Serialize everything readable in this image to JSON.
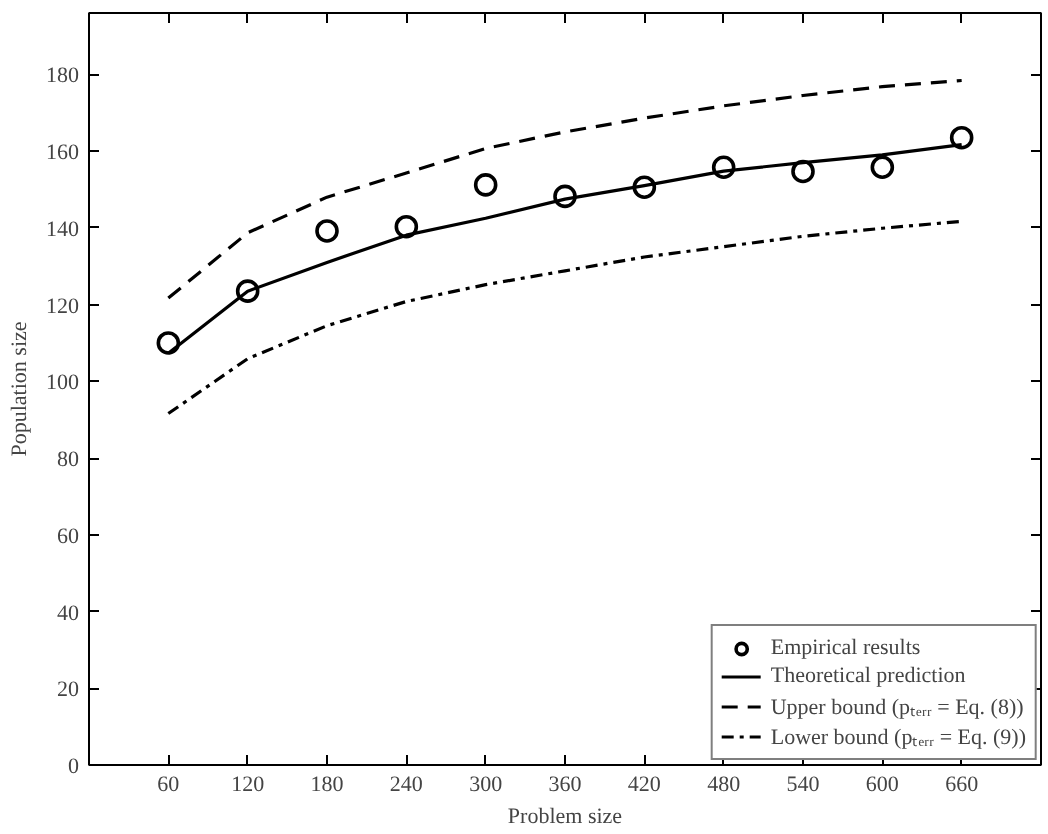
{
  "chart_data": {
    "type": "line",
    "xlabel": "Problem size",
    "ylabel": "Population size",
    "x": [
      60,
      120,
      180,
      240,
      300,
      360,
      420,
      480,
      540,
      600,
      660
    ],
    "xlim": [
      0,
      720
    ],
    "xticks": [
      60,
      120,
      180,
      240,
      300,
      360,
      420,
      480,
      540,
      600,
      660
    ],
    "ylim": [
      0,
      196
    ],
    "yticks": [
      0,
      20,
      40,
      60,
      80,
      100,
      120,
      140,
      160,
      180
    ],
    "grid": false,
    "legend": "bottom right",
    "series": [
      {
        "name": "Empirical results",
        "type": "scatter",
        "marker": "circle",
        "color": "#000000",
        "values": [
          110.0,
          123.5,
          139.2,
          140.3,
          151.2,
          148.2,
          150.6,
          155.8,
          154.7,
          155.8,
          163.5
        ]
      },
      {
        "name": "Theoretical prediction",
        "line_style": "solid",
        "color": "#000000",
        "values": [
          107.3,
          123.5,
          131.0,
          138.1,
          142.5,
          147.5,
          151.0,
          154.8,
          157.0,
          159.0,
          161.7
        ]
      },
      {
        "name": "Upper bound (pₜₑᵣᵣ = Eq. (8))",
        "line_style": "dashed",
        "color": "#000000",
        "values": [
          121.7,
          138.7,
          148.0,
          154.3,
          160.7,
          165.0,
          168.6,
          171.8,
          174.5,
          176.8,
          178.4
        ]
      },
      {
        "name": "Lower bound (pₜₑᵣᵣ = Eq. (9))",
        "line_style": "dashdot",
        "color": "#000000",
        "values": [
          91.6,
          105.9,
          114.5,
          120.8,
          125.2,
          128.8,
          132.4,
          135.1,
          137.8,
          139.9,
          141.7
        ]
      }
    ]
  }
}
